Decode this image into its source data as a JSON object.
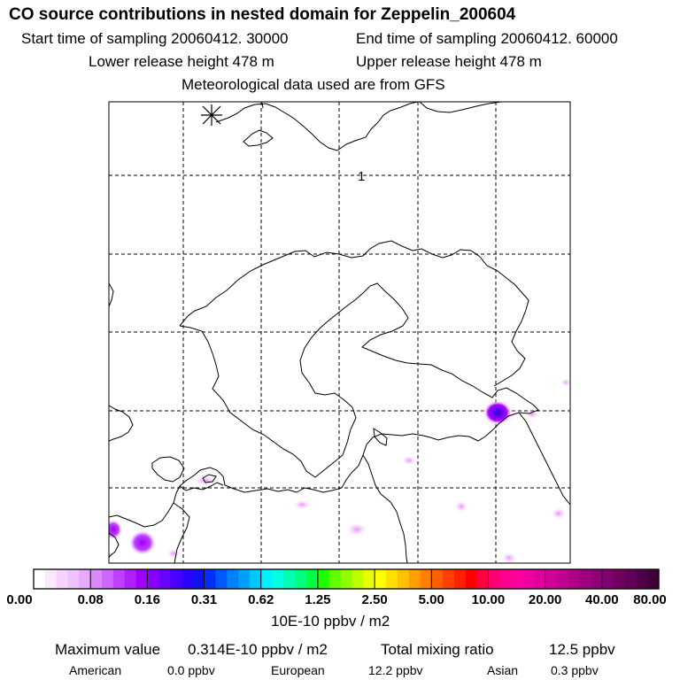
{
  "header": {
    "title": "CO  source contributions in nested domain for Zeppelin_200604",
    "start_label": "Start time of sampling 20060412. 30000",
    "end_label": "End time of sampling 20060412. 60000",
    "lower_label": "Lower release height  478 m",
    "upper_label": "Upper release height  478 m",
    "met_label": "Meteorological data used are from GFS"
  },
  "map": {
    "marker_label": "1",
    "release_site_icon": "asterisk-icon"
  },
  "colorbar": {
    "ticks": [
      "0.00",
      "0.08",
      "0.16",
      "0.31",
      "0.62",
      "1.25",
      "2.50",
      "5.00",
      "10.00",
      "20.00",
      "40.00",
      "80.00"
    ],
    "units": "10E-10 ppbv / m2"
  },
  "stats": {
    "max_label": "Maximum value",
    "max_value": "0.314E-10 ppbv / m2",
    "total_label": "Total mixing ratio",
    "total_value": "12.5 ppbv",
    "american_label": "American",
    "american_value": "0.0 ppbv",
    "european_label": "European",
    "european_value": "12.2 ppbv",
    "asian_label": "Asian",
    "asian_value": "0.3 ppbv"
  }
}
